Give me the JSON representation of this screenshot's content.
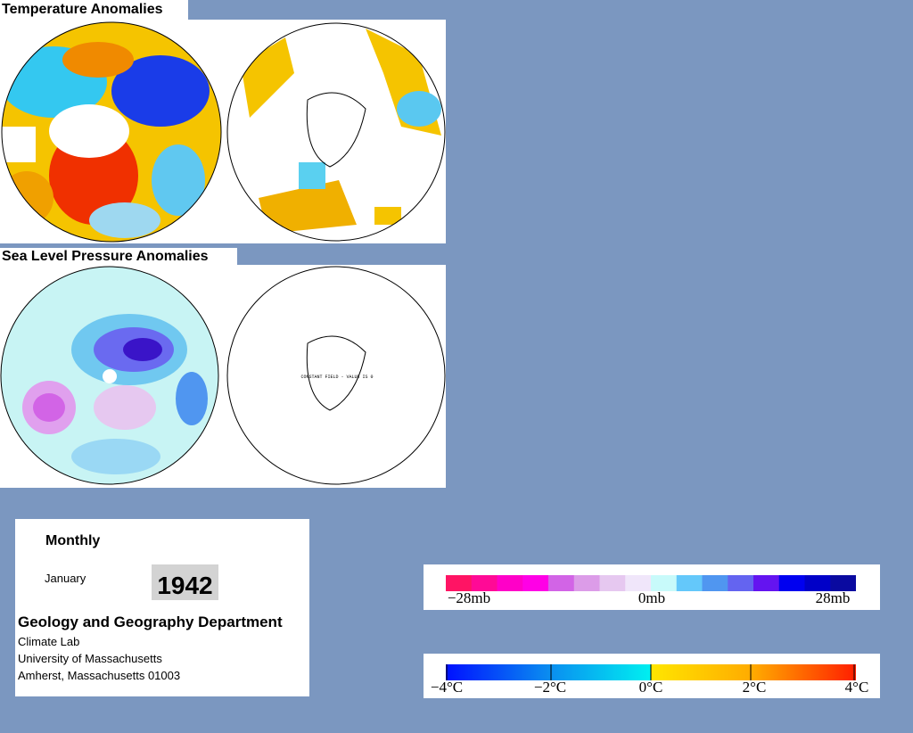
{
  "header": {
    "temperature_title": "Temperature Anomalies",
    "pressure_title": "Sea Level Pressure Anomalies"
  },
  "maps": {
    "southern_pressure_note": "CONSTANT FIELD - VALUE IS 0"
  },
  "info": {
    "period": "Monthly",
    "month": "January",
    "year": "1942",
    "department": "Geology and Geography Department",
    "lines": [
      "Climate Lab",
      "University of Massachusetts",
      "Amherst, Massachusetts 01003"
    ]
  },
  "pressure_scale": {
    "labels": [
      "−28mb",
      "0mb",
      "28mb"
    ]
  },
  "temperature_scale": {
    "labels": [
      "−4°C",
      "−2°C",
      "0°C",
      "2°C",
      "4°C"
    ]
  }
}
